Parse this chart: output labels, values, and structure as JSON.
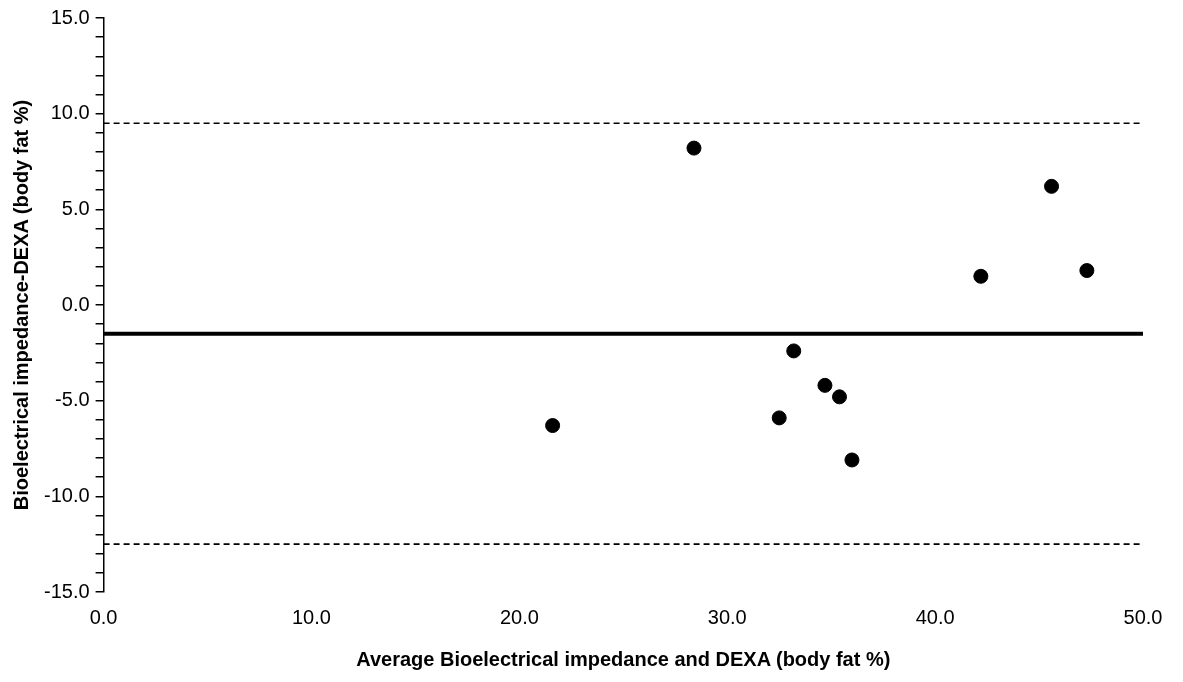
{
  "chart_data": {
    "type": "scatter",
    "xlabel": "Average Bioelectrical impedance and DEXA (body fat %)",
    "ylabel": "Bioelectrical impedance-DEXA (body fat %)",
    "x": [
      28.4,
      21.6,
      45.6,
      42.2,
      47.3,
      33.2,
      34.7,
      35.4,
      32.5,
      36.0
    ],
    "series": [
      {
        "color": "#000000",
        "values": [
          8.2,
          -6.3,
          6.2,
          1.5,
          1.8,
          -2.4,
          -4.2,
          -4.8,
          -5.9,
          -8.1
        ]
      }
    ],
    "marker": "circle",
    "grid": false,
    "legend": false,
    "xlim": [
      0,
      50
    ],
    "xticks": [
      {
        "value": 0,
        "label": "0.0"
      },
      {
        "value": 10,
        "label": "10.0"
      },
      {
        "value": 20,
        "label": "20.0"
      },
      {
        "value": 30,
        "label": "30.0"
      },
      {
        "value": 40,
        "label": "40.0"
      },
      {
        "value": 50,
        "label": "50.0"
      }
    ],
    "ylim": [
      -15,
      15
    ],
    "yticks": [
      {
        "value": -15,
        "label": "-15.0"
      },
      {
        "value": -14,
        "label": null
      },
      {
        "value": -13,
        "label": null
      },
      {
        "value": -12,
        "label": null
      },
      {
        "value": -11,
        "label": null
      },
      {
        "value": -10,
        "label": "-10.0"
      },
      {
        "value": -9,
        "label": null
      },
      {
        "value": -8,
        "label": null
      },
      {
        "value": -7,
        "label": null
      },
      {
        "value": -6,
        "label": null
      },
      {
        "value": -5,
        "label": "-5.0"
      },
      {
        "value": -4,
        "label": null
      },
      {
        "value": -3,
        "label": null
      },
      {
        "value": -2,
        "label": null
      },
      {
        "value": -1,
        "label": null
      },
      {
        "value": 0,
        "label": "0.0"
      },
      {
        "value": 1,
        "label": null
      },
      {
        "value": 2,
        "label": null
      },
      {
        "value": 3,
        "label": null
      },
      {
        "value": 4,
        "label": null
      },
      {
        "value": 5,
        "label": "5.0"
      },
      {
        "value": 6,
        "label": null
      },
      {
        "value": 7,
        "label": null
      },
      {
        "value": 8,
        "label": null
      },
      {
        "value": 9,
        "label": null
      },
      {
        "value": 10,
        "label": "10.0"
      },
      {
        "value": 11,
        "label": null
      },
      {
        "value": 12,
        "label": null
      },
      {
        "value": 13,
        "label": null
      },
      {
        "value": 14,
        "label": null
      },
      {
        "value": 15,
        "label": "15.0"
      }
    ],
    "ref_lines": [
      {
        "axis": "y",
        "value": 9.5,
        "color": "#000000",
        "line_style": "dashed"
      },
      {
        "axis": "y",
        "value": -1.5,
        "color": "#000000",
        "line_style": "solid"
      },
      {
        "axis": "y",
        "value": -12.5,
        "color": "#000000",
        "line_style": "dashed"
      }
    ]
  }
}
